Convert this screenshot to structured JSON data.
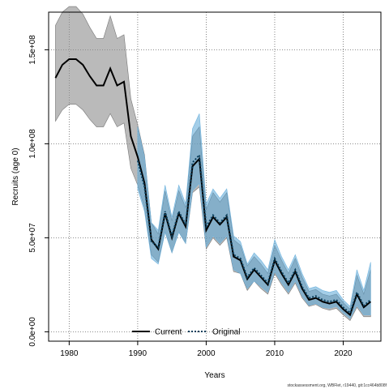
{
  "chart_data": {
    "type": "line",
    "title": "",
    "xlabel": "Years",
    "ylabel": "Recruits (age 0)",
    "xlim": [
      1977,
      2025.5
    ],
    "ylim": [
      -5000000.0,
      170000000.0
    ],
    "x_ticks": [
      1980,
      1990,
      2000,
      2010,
      2020
    ],
    "x_tick_labels": [
      "1980",
      "1990",
      "2000",
      "2010",
      "2020"
    ],
    "y_ticks": [
      0,
      50000000,
      100000000,
      150000000
    ],
    "y_tick_labels": [
      "0.0e+00",
      "5.0e+07",
      "1.0e+08",
      "1.5e+08"
    ],
    "grid": true,
    "legend_position": "bottom-center",
    "legend": [
      {
        "label": "Current",
        "style": "solid"
      },
      {
        "label": "Original",
        "style": "dotted"
      }
    ],
    "footnote": "stockassessment.org, WBFlet, r19440, git:1cc464b808f",
    "colors": {
      "current_line": "#000000",
      "current_band": "#8c8c8c",
      "original_line": "#0b3f5c",
      "original_band": "#5aa6d6"
    },
    "series": [
      {
        "name": "Current",
        "x": [
          1978,
          1979,
          1980,
          1981,
          1982,
          1983,
          1984,
          1985,
          1986,
          1987,
          1988,
          1989,
          1990,
          1991,
          1992,
          1993,
          1994,
          1995,
          1996,
          1997,
          1998,
          1999,
          2000,
          2001,
          2002,
          2003,
          2004,
          2005,
          2006,
          2007,
          2008,
          2009,
          2010,
          2011,
          2012,
          2013,
          2014,
          2015,
          2016,
          2017,
          2018,
          2019,
          2020,
          2021,
          2022,
          2023,
          2024
        ],
        "y": [
          135000000,
          142000000,
          145000000,
          145000000,
          142000000,
          136000000,
          131000000,
          131000000,
          140000000,
          131000000,
          133000000,
          104000000,
          93000000,
          79000000,
          49000000,
          44000000,
          63000000,
          50000000,
          63000000,
          56000000,
          88000000,
          92000000,
          54000000,
          61000000,
          57000000,
          61000000,
          40000000,
          38000000,
          28000000,
          33000000,
          29000000,
          25000000,
          38000000,
          31000000,
          25000000,
          32000000,
          23000000,
          17000000,
          18000000,
          16000000,
          15000000,
          16000000,
          12000000,
          9000000,
          20000000,
          13000000,
          16000000
        ],
        "lower": [
          112000000,
          118000000,
          121000000,
          121000000,
          118000000,
          113000000,
          109000000,
          109000000,
          116000000,
          109000000,
          111000000,
          87000000,
          78000000,
          66000000,
          41000000,
          37000000,
          53000000,
          42000000,
          53000000,
          47000000,
          74000000,
          77000000,
          44000000,
          50000000,
          46000000,
          50000000,
          32000000,
          31000000,
          22000000,
          27000000,
          23000000,
          20000000,
          31000000,
          25000000,
          20000000,
          26000000,
          18000000,
          13500000,
          14500000,
          12500000,
          11500000,
          12500000,
          9000000,
          6000000,
          13000000,
          8000000,
          8000000
        ],
        "upper": [
          163000000,
          170000000,
          173000000,
          173000000,
          169000000,
          162000000,
          156000000,
          156000000,
          168000000,
          156000000,
          158000000,
          124000000,
          110000000,
          94000000,
          58000000,
          52000000,
          75000000,
          59000000,
          75000000,
          66000000,
          104000000,
          109000000,
          65000000,
          74000000,
          69000000,
          74000000,
          49000000,
          46000000,
          35000000,
          40000000,
          36000000,
          31000000,
          46000000,
          38000000,
          31000000,
          39000000,
          29000000,
          21500000,
          22500000,
          20000000,
          19000000,
          20000000,
          15500000,
          12000000,
          30000000,
          20000000,
          33000000
        ]
      },
      {
        "name": "Original",
        "x": [
          1990,
          1991,
          1992,
          1993,
          1994,
          1995,
          1996,
          1997,
          1998,
          1999,
          2000,
          2001,
          2002,
          2003,
          2004,
          2005,
          2006,
          2007,
          2008,
          2009,
          2010,
          2011,
          2012,
          2013,
          2014,
          2015,
          2016,
          2017,
          2018,
          2019,
          2020,
          2021,
          2022,
          2023,
          2024
        ],
        "y": [
          91000000,
          77000000,
          48000000,
          45000000,
          64000000,
          51000000,
          64000000,
          57000000,
          90000000,
          94000000,
          56000000,
          62000000,
          58000000,
          62000000,
          41000000,
          39000000,
          29000000,
          34000000,
          30000000,
          26000000,
          39000000,
          32000000,
          26000000,
          33000000,
          24000000,
          18000000,
          19000000,
          17000000,
          16000000,
          17000000,
          13000000,
          10000000,
          21000000,
          14000000,
          17000000
        ],
        "lower": [
          76000000,
          64000000,
          39000000,
          36000000,
          53000000,
          42000000,
          53000000,
          47000000,
          75000000,
          79000000,
          45000000,
          51000000,
          47000000,
          51000000,
          33000000,
          31000000,
          23000000,
          27000000,
          24000000,
          21000000,
          32000000,
          26000000,
          21000000,
          27000000,
          19000000,
          14000000,
          15000000,
          13000000,
          12500000,
          13500000,
          10000000,
          7000000,
          14000000,
          9000000,
          9000000
        ],
        "upper": [
          109000000,
          93000000,
          58000000,
          54000000,
          78000000,
          61000000,
          78000000,
          68000000,
          108000000,
          116000000,
          68000000,
          76000000,
          71000000,
          76000000,
          51000000,
          48000000,
          36000000,
          42000000,
          38000000,
          33000000,
          49000000,
          40000000,
          33000000,
          41000000,
          31000000,
          23000000,
          24000000,
          22000000,
          21000000,
          22000000,
          17000000,
          13500000,
          33000000,
          22000000,
          37000000
        ]
      }
    ]
  }
}
